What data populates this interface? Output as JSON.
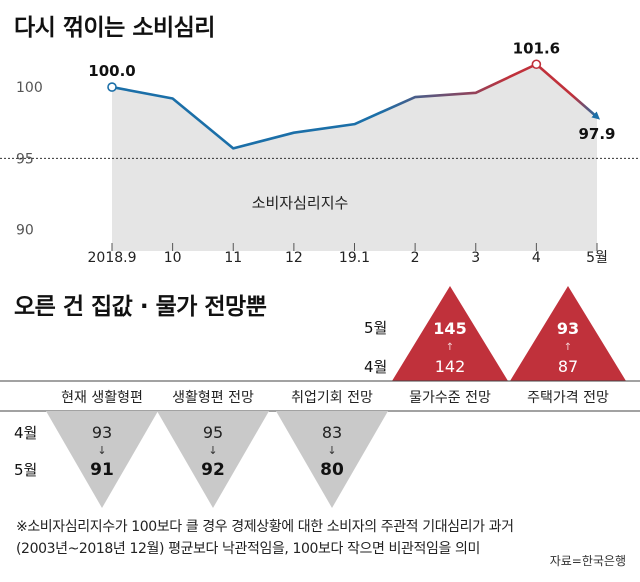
{
  "chart_title": "다시 꺾이는 소비심리",
  "chart_data": [
    {
      "type": "line",
      "title": "다시 꺾이는 소비심리",
      "series_label": "소비자심리지수",
      "categories": [
        "2018.9",
        "10",
        "11",
        "12",
        "19.1",
        "2",
        "3",
        "4",
        "5월"
      ],
      "values": [
        100.0,
        99.2,
        95.7,
        96.8,
        97.4,
        99.3,
        99.6,
        101.6,
        97.9
      ],
      "labeled_points": [
        {
          "index": 0,
          "label": "100.0"
        },
        {
          "index": 7,
          "label": "101.6"
        },
        {
          "index": 8,
          "label": "97.9"
        }
      ],
      "ylim": [
        88.5,
        103
      ],
      "yticks": [
        "100",
        "95",
        "90"
      ],
      "reference_line": 95,
      "colors": {
        "line_start": "#1b6fa8",
        "line_end": "#c0313b",
        "fill": "#e5e5e5"
      }
    },
    {
      "type": "table",
      "title": "오른 건 집값 · 물가 전망뿐",
      "row_labels": {
        "may": "5월",
        "april": "4월"
      },
      "arrow": "↑",
      "down_arrow": "↓",
      "rising": [
        {
          "label": "물가수준 전망",
          "april": 142,
          "may": 145
        },
        {
          "label": "주택가격 전망",
          "april": 87,
          "may": 93
        }
      ],
      "falling": [
        {
          "label": "현재 생활형편",
          "april": 93,
          "may": 91
        },
        {
          "label": "생활형편 전망",
          "april": 95,
          "may": 92
        },
        {
          "label": "취업기회 전망",
          "april": 83,
          "may": 80
        }
      ],
      "colors": {
        "rising": "#c0313b",
        "falling": "#c9c9c9"
      }
    }
  ],
  "footnote": {
    "line1": "※소비자심리지수가 100보다 클 경우 경제상황에 대한 소비자의 주관적 기대심리가 과거",
    "line2": "(2003년~2018년 12월) 평균보다 낙관적임을, 100보다 작으면 비관적임을 의미"
  },
  "source": "자료=한국은행"
}
